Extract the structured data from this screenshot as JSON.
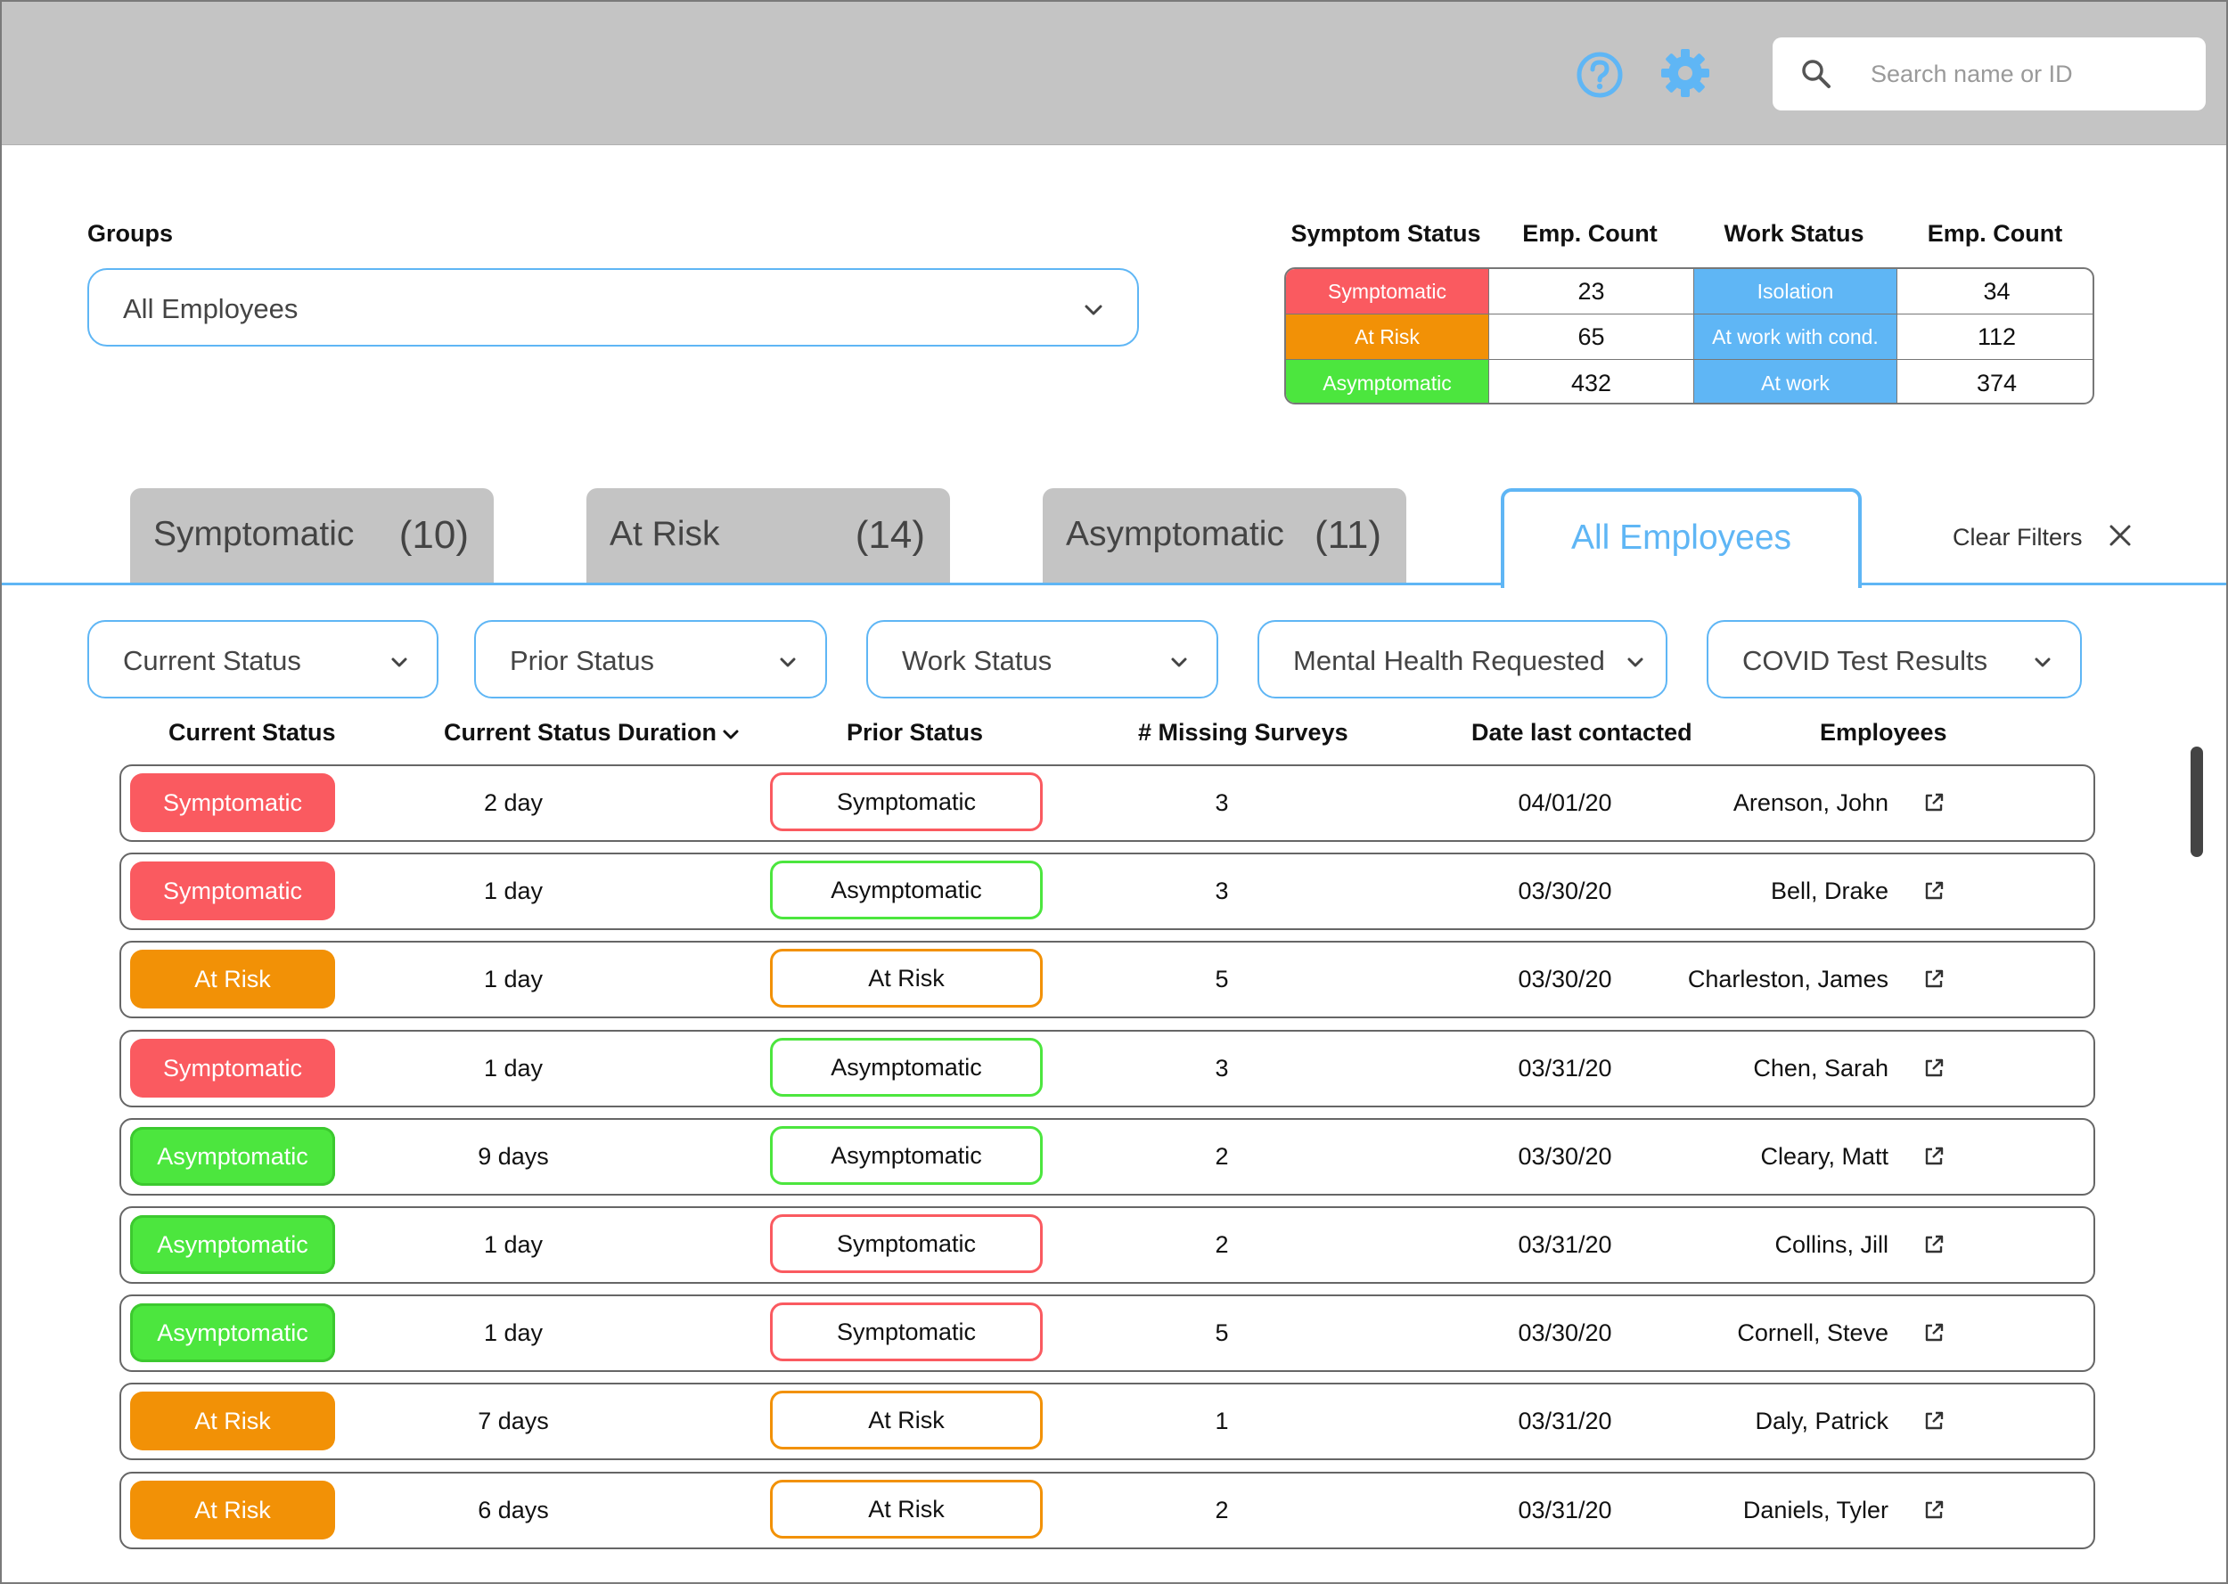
{
  "header": {
    "search_placeholder": "Search name or ID",
    "icons": [
      "help-icon",
      "gear-icon",
      "search-icon"
    ]
  },
  "groups": {
    "label": "Groups",
    "selected": "All Employees"
  },
  "summary": {
    "headers": [
      "Symptom Status",
      "Emp. Count",
      "Work Status",
      "Emp. Count"
    ],
    "rows": [
      {
        "symptom": "Symptomatic",
        "symptom_count": "23",
        "work": "Isolation",
        "work_count": "34"
      },
      {
        "symptom": "At Risk",
        "symptom_count": "65",
        "work": "At work with cond.",
        "work_count": "112"
      },
      {
        "symptom": "Asymptomatic",
        "symptom_count": "432",
        "work": "At work",
        "work_count": "374"
      }
    ]
  },
  "tabs": [
    {
      "label": "Symptomatic",
      "count": "(10)"
    },
    {
      "label": "At Risk",
      "count": "(14)"
    },
    {
      "label": "Asymptomatic",
      "count": "(11)"
    },
    {
      "label": "All Employees",
      "count": ""
    }
  ],
  "active_tab": "All Employees",
  "clear_filters": "Clear Filters",
  "filters": [
    "Current Status",
    "Prior Status",
    "Work Status",
    "Mental Health Requested",
    "COVID Test Results"
  ],
  "columns": [
    "Current Status",
    "Current Status Duration",
    "Prior Status",
    "# Missing Surveys",
    "Date last contacted",
    "Employees"
  ],
  "rows": [
    {
      "current": "Symptomatic",
      "duration": "2 day",
      "prior": "Symptomatic",
      "missing": "3",
      "date": "04/01/20",
      "name": "Arenson, John"
    },
    {
      "current": "Symptomatic",
      "duration": "1 day",
      "prior": "Asymptomatic",
      "missing": "3",
      "date": "03/30/20",
      "name": "Bell, Drake"
    },
    {
      "current": "At Risk",
      "duration": "1 day",
      "prior": "At Risk",
      "missing": "5",
      "date": "03/30/20",
      "name": "Charleston, James"
    },
    {
      "current": "Symptomatic",
      "duration": "1 day",
      "prior": "Asymptomatic",
      "missing": "3",
      "date": "03/31/20",
      "name": "Chen, Sarah"
    },
    {
      "current": "Asymptomatic",
      "duration": "9 days",
      "prior": "Asymptomatic",
      "missing": "2",
      "date": "03/30/20",
      "name": "Cleary, Matt"
    },
    {
      "current": "Asymptomatic",
      "duration": "1 day",
      "prior": "Symptomatic",
      "missing": "2",
      "date": "03/31/20",
      "name": "Collins, Jill"
    },
    {
      "current": "Asymptomatic",
      "duration": "1 day",
      "prior": "Symptomatic",
      "missing": "5",
      "date": "03/30/20",
      "name": "Cornell, Steve"
    },
    {
      "current": "At Risk",
      "duration": "7 days",
      "prior": "At Risk",
      "missing": "1",
      "date": "03/31/20",
      "name": "Daly, Patrick"
    },
    {
      "current": "At Risk",
      "duration": "6 days",
      "prior": "At Risk",
      "missing": "2",
      "date": "03/31/20",
      "name": "Daniels, Tyler"
    }
  ],
  "colors": {
    "accent": "#5fb6f5",
    "header_bg": "#c4c4c4",
    "Symptomatic": "#fa5a60",
    "At Risk": "#f29106",
    "Asymptomatic": "#4ce63e",
    "work_status": "#5fb6f5"
  }
}
